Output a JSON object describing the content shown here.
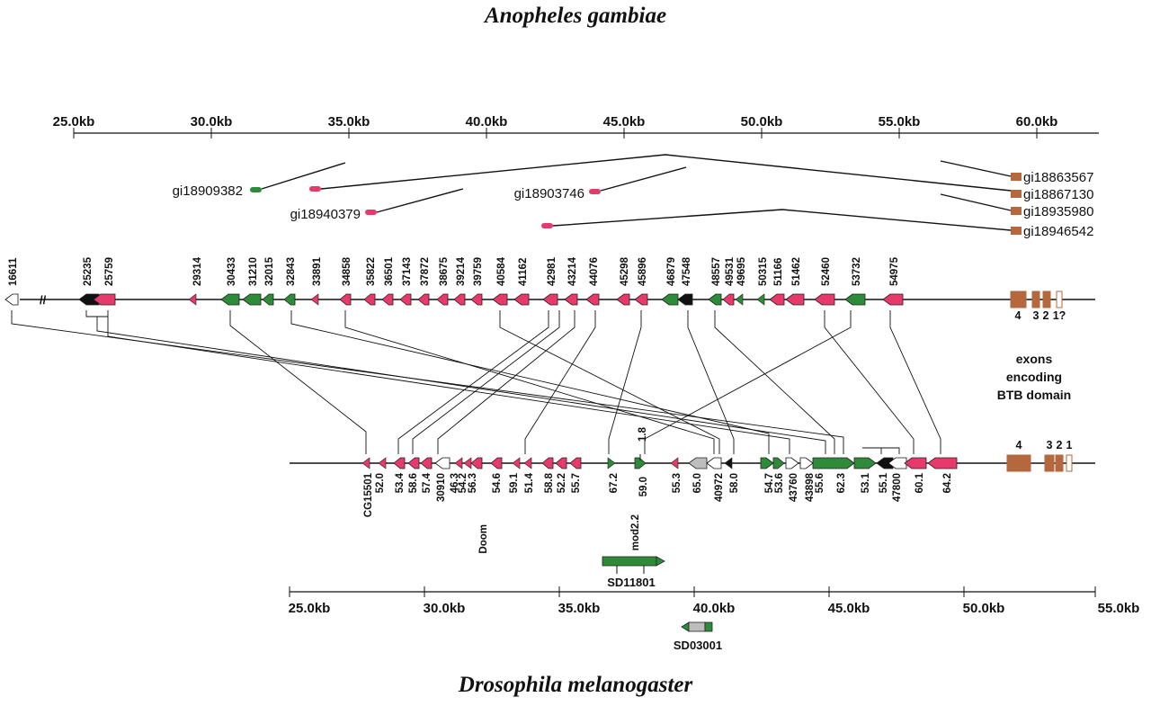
{
  "titles": {
    "top": "Anopheles gambiae",
    "bottom": "Drosophila melanogaster"
  },
  "scales": {
    "top": [
      "25.0kb",
      "30.0kb",
      "35.0kb",
      "40.0kb",
      "45.0kb",
      "50.0kb",
      "55.0kb",
      "60.0kb"
    ],
    "bottom": [
      "25.0kb",
      "30.0kb",
      "35.0kb",
      "40.0kb",
      "45.0kb",
      "50.0kb",
      "55.0kb"
    ]
  },
  "gi": {
    "left": [
      {
        "label": "gi18909382",
        "color": "green"
      },
      {
        "label": "gi18940379",
        "color": "pink"
      },
      {
        "label": "gi18903746",
        "color": "pink"
      }
    ],
    "right": [
      "gi18863567",
      "gi18867130",
      "gi18935980",
      "gi18946542"
    ]
  },
  "anopheles_genes": [
    "16611",
    "25235",
    "25759",
    "29314",
    "30433",
    "31210",
    "32015",
    "32843",
    "33891",
    "34858",
    "35822",
    "36501",
    "37143",
    "37872",
    "38675",
    "39214",
    "39759",
    "40584",
    "41162",
    "42981",
    "43214",
    "44076",
    "45298",
    "45896",
    "46879",
    "47548",
    "48557",
    "49531",
    "49695",
    "50315",
    "51166",
    "51462",
    "52460",
    "53732",
    "54975"
  ],
  "anopheles_exons": [
    "4",
    "3",
    "2",
    "1?"
  ],
  "btb_label": [
    "exons",
    "encoding",
    "BTB domain"
  ],
  "drosophila_genes": [
    "CG15501",
    "52.0",
    "53.4",
    "58.6",
    "57.4",
    "30910",
    "46.3",
    "54.2",
    "56.3",
    "Doom",
    "54.6",
    "59.1",
    "51.4",
    "58.8",
    "52.2",
    "55.7",
    "67.2",
    "mod2.2",
    "1.8",
    "59.0",
    "55.3",
    "65.0",
    "40972",
    "58.0",
    "54.7",
    "53.6",
    "43760",
    "43898",
    "55.6",
    "62.3",
    "53.1",
    "55.1",
    "47800",
    "60.1",
    "64.2"
  ],
  "drosophila_exons": [
    "4",
    "3",
    "2",
    "1"
  ],
  "clones": [
    "SD11801",
    "SD03001"
  ],
  "colors": {
    "pink": "#e8396b",
    "green": "#2e8b3a",
    "brown": "#b5673d",
    "black": "#111111",
    "grey": "#bdbdbd"
  }
}
